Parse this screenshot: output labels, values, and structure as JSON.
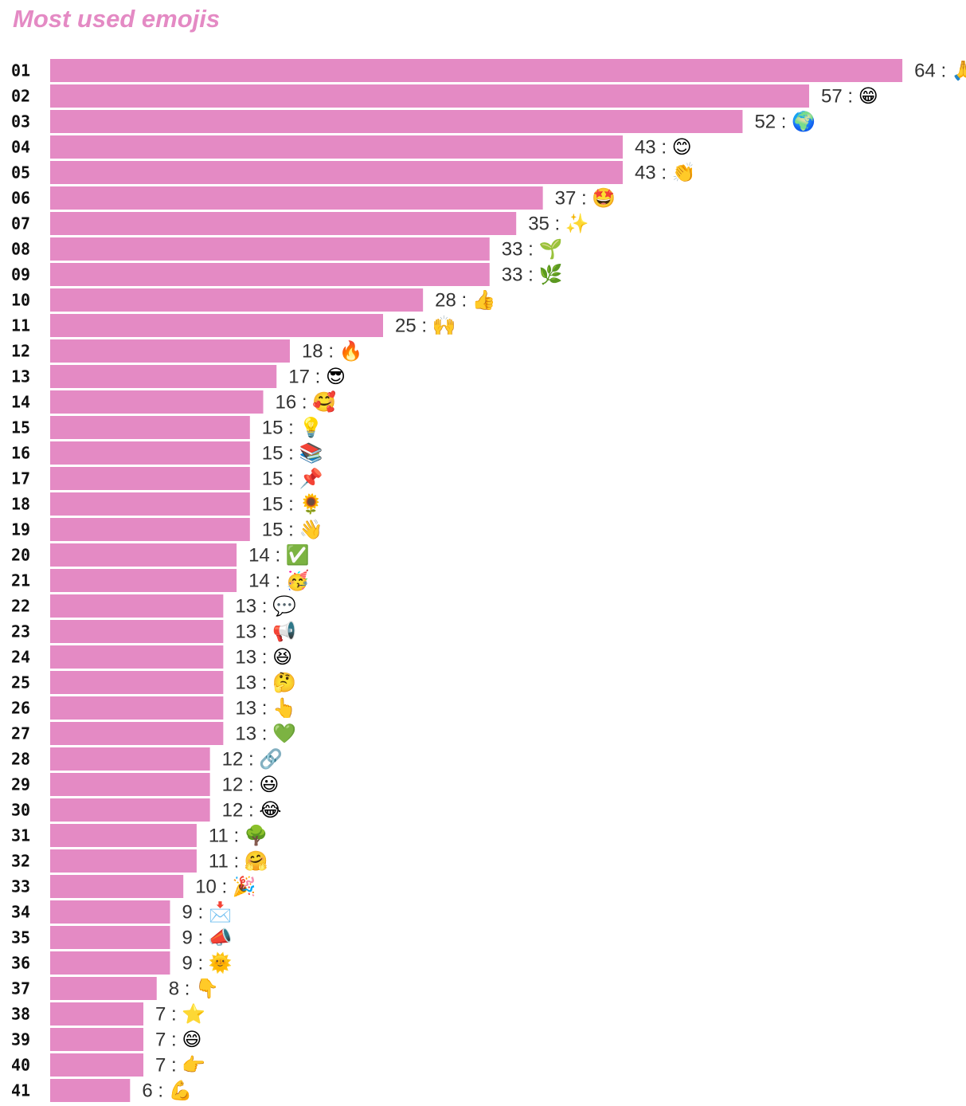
{
  "chart_data": {
    "type": "bar",
    "orientation": "horizontal",
    "title": "Most used emojis",
    "bar_color": "#e48ac4",
    "categories": [
      "01",
      "02",
      "03",
      "04",
      "05",
      "06",
      "07",
      "08",
      "09",
      "10",
      "11",
      "12",
      "13",
      "14",
      "15",
      "16",
      "17",
      "18",
      "19",
      "20",
      "21",
      "22",
      "23",
      "24",
      "25",
      "26",
      "27",
      "28",
      "29",
      "30",
      "31",
      "32",
      "33",
      "34",
      "35",
      "36",
      "37",
      "38",
      "39",
      "40",
      "41"
    ],
    "values": [
      64,
      57,
      52,
      43,
      43,
      37,
      35,
      33,
      33,
      28,
      25,
      18,
      17,
      16,
      15,
      15,
      15,
      15,
      15,
      14,
      14,
      13,
      13,
      13,
      13,
      13,
      13,
      12,
      12,
      12,
      11,
      11,
      10,
      9,
      9,
      9,
      8,
      7,
      7,
      7,
      6
    ],
    "emojis": [
      "🙏",
      "😁",
      "🌍",
      "😊",
      "👏",
      "🤩",
      "✨",
      "🌱",
      "🌿",
      "👍",
      "🙌",
      "🔥",
      "😎",
      "🥰",
      "💡",
      "📚",
      "📌",
      "🌻",
      "👋",
      "✅",
      "🥳",
      "💬",
      "📢",
      "😆",
      "🤔",
      "👆",
      "💚",
      "🔗",
      "😃",
      "😂",
      "🌳",
      "🤗",
      "🎉",
      "📩",
      "📣",
      "🌞",
      "👇",
      "⭐",
      "😄",
      "👉",
      "💪"
    ]
  }
}
